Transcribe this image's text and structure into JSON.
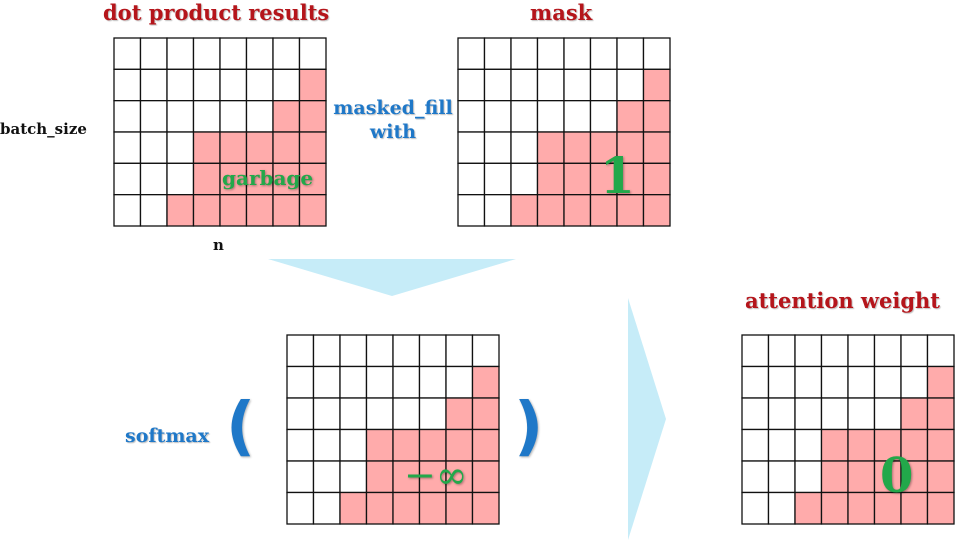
{
  "colors": {
    "title_red": "#b5151b",
    "label_blue": "#1f78c8",
    "label_green": "#22a84a",
    "mask_fill": "#ffabab",
    "arrow_fill": "#c6ecf8",
    "grid_line": "#111111"
  },
  "grid": {
    "rows": 6,
    "cols": 8,
    "masked_cells_per_row": [
      0,
      1,
      2,
      5,
      5,
      6
    ]
  },
  "labels": {
    "dot_product_title": "dot product results",
    "mask_title": "mask",
    "attention_title": "attention weight",
    "batch_size": "batch_size",
    "n": "n",
    "masked_fill_line1": "masked_fill",
    "masked_fill_line2": "with",
    "garbage": "garbage",
    "mask_value": "1",
    "neg_inf": "−∞",
    "softmax": "softmax",
    "paren_open": "(",
    "paren_close": ")",
    "attention_value": "0"
  }
}
